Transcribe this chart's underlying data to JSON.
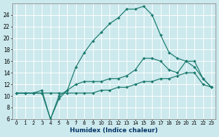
{
  "xlabel": "Humidex (Indice chaleur)",
  "x_values": [
    0,
    1,
    2,
    3,
    4,
    5,
    6,
    7,
    8,
    9,
    10,
    11,
    12,
    13,
    14,
    15,
    16,
    17,
    18,
    19,
    20,
    21,
    22,
    23
  ],
  "line1": [
    10.5,
    10.5,
    10.5,
    10.5,
    6.0,
    9.5,
    11.0,
    15.0,
    17.5,
    19.5,
    21.0,
    22.5,
    23.5,
    25.0,
    25.0,
    25.5,
    24.0,
    20.5,
    17.5,
    16.5,
    16.0,
    15.0,
    13.0,
    11.5
  ],
  "line2": [
    10.5,
    10.5,
    10.5,
    11.0,
    6.0,
    10.0,
    11.0,
    12.0,
    12.5,
    12.5,
    12.5,
    13.0,
    13.0,
    13.5,
    14.5,
    16.5,
    16.5,
    16.0,
    14.5,
    14.0,
    16.0,
    16.0,
    13.0,
    11.5
  ],
  "line3": [
    10.5,
    10.5,
    10.5,
    10.5,
    10.5,
    10.5,
    10.5,
    10.5,
    10.5,
    10.5,
    11.0,
    11.0,
    11.5,
    11.5,
    12.0,
    12.5,
    12.5,
    13.0,
    13.0,
    13.5,
    14.0,
    14.0,
    12.0,
    11.5
  ],
  "line_color": "#1a7a6e",
  "bg_color": "#cce9ed",
  "grid_color": "#b8d8dc",
  "ylim": [
    6,
    26
  ],
  "yticks": [
    6,
    8,
    10,
    12,
    14,
    16,
    18,
    20,
    22,
    24
  ],
  "xlim": [
    -0.5,
    23.5
  ]
}
